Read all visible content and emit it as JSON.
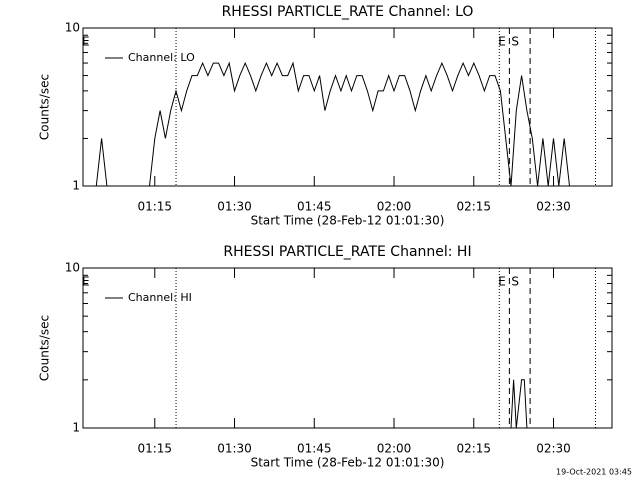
{
  "chart_data": [
    {
      "type": "line",
      "title": "RHESSI PARTICLE_RATE Channel: LO",
      "x_label": "Start Time (28-Feb-12 01:01:30)",
      "y_label": "Counts/sec",
      "x": [
        64,
        65,
        66,
        67,
        68,
        69,
        70,
        71,
        72,
        73,
        74,
        75,
        76,
        77,
        78,
        79,
        80,
        81,
        82,
        83,
        84,
        85,
        86,
        87,
        88,
        89,
        90,
        91,
        92,
        93,
        94,
        95,
        96,
        97,
        98,
        99,
        100,
        101,
        102,
        103,
        104,
        105,
        106,
        107,
        108,
        109,
        110,
        111,
        112,
        113,
        114,
        115,
        116,
        117,
        118,
        119,
        120,
        121,
        122,
        123,
        124,
        125,
        126,
        127,
        128,
        129,
        130,
        131,
        132,
        133,
        134,
        135,
        136,
        137,
        138,
        139,
        140,
        141,
        142,
        143,
        144,
        145,
        146,
        147,
        148,
        149,
        150,
        151,
        152,
        153
      ],
      "series": [
        {
          "name": "Channel: LO",
          "color": "#000000",
          "values": [
            1,
            2,
            1,
            null,
            null,
            null,
            null,
            null,
            null,
            null,
            1,
            2,
            3,
            2,
            3,
            4,
            3,
            4,
            5,
            5,
            6,
            5,
            6,
            6,
            5,
            6,
            4,
            5,
            6,
            5,
            4,
            5,
            6,
            5,
            6,
            5,
            5,
            6,
            4,
            5,
            5,
            4,
            5,
            3,
            4,
            5,
            4,
            5,
            4,
            5,
            5,
            4,
            3,
            4,
            4,
            5,
            4,
            5,
            5,
            4,
            3,
            4,
            5,
            4,
            5,
            6,
            5,
            4,
            5,
            6,
            5,
            6,
            5,
            4,
            5,
            5,
            4,
            2,
            1,
            3,
            5,
            3,
            2,
            1,
            2,
            1,
            2,
            1,
            2,
            1
          ]
        }
      ],
      "xlim": [
        61.5,
        161
      ],
      "xticks": [
        {
          "value": 75,
          "label": "01:15"
        },
        {
          "value": 90,
          "label": "01:30"
        },
        {
          "value": 105,
          "label": "01:45"
        },
        {
          "value": 120,
          "label": "02:00"
        },
        {
          "value": 135,
          "label": "02:15"
        },
        {
          "value": 150,
          "label": "02:30"
        }
      ],
      "ylim": [
        1,
        10
      ],
      "yticks": [
        1,
        10
      ],
      "yminor_ticks": [
        2,
        3,
        4,
        5,
        6,
        7,
        8,
        9
      ],
      "log_y": true,
      "legend": "upper left",
      "vlines": [
        {
          "x": 61.5,
          "style": "none",
          "label": "E"
        },
        {
          "x": 79,
          "style": "dotted"
        },
        {
          "x": 139.8,
          "style": "dotted",
          "label": "E"
        },
        {
          "x": 141.7,
          "style": "dashed",
          "label": "S"
        },
        {
          "x": 145.6,
          "style": "dashed"
        },
        {
          "x": 157.9,
          "style": "dotted"
        }
      ]
    },
    {
      "type": "line",
      "title": "RHESSI PARTICLE_RATE Channel: HI",
      "x_label": "Start Time (28-Feb-12 01:01:30)",
      "y_label": "Counts/sec",
      "x": [
        142,
        142.5,
        143,
        144,
        144.5,
        145
      ],
      "series": [
        {
          "name": "Channel: HI",
          "color": "#000000",
          "values": [
            1,
            2,
            1,
            2,
            2,
            1
          ]
        }
      ],
      "xlim": [
        61.5,
        161
      ],
      "xticks": [
        {
          "value": 75,
          "label": "01:15"
        },
        {
          "value": 90,
          "label": "01:30"
        },
        {
          "value": 105,
          "label": "01:45"
        },
        {
          "value": 120,
          "label": "02:00"
        },
        {
          "value": 135,
          "label": "02:15"
        },
        {
          "value": 150,
          "label": "02:30"
        }
      ],
      "ylim": [
        1,
        10
      ],
      "yticks": [
        1,
        10
      ],
      "yminor_ticks": [
        2,
        3,
        4,
        5,
        6,
        7,
        8,
        9
      ],
      "log_y": true,
      "legend": "upper left",
      "vlines": [
        {
          "x": 61.5,
          "style": "none",
          "label": "E"
        },
        {
          "x": 79,
          "style": "dotted"
        },
        {
          "x": 139.8,
          "style": "dotted",
          "label": "E"
        },
        {
          "x": 141.7,
          "style": "dashed",
          "label": "S"
        },
        {
          "x": 145.6,
          "style": "dashed"
        },
        {
          "x": 157.9,
          "style": "dotted"
        }
      ]
    }
  ],
  "footer": "19-Oct-2021 03:45"
}
